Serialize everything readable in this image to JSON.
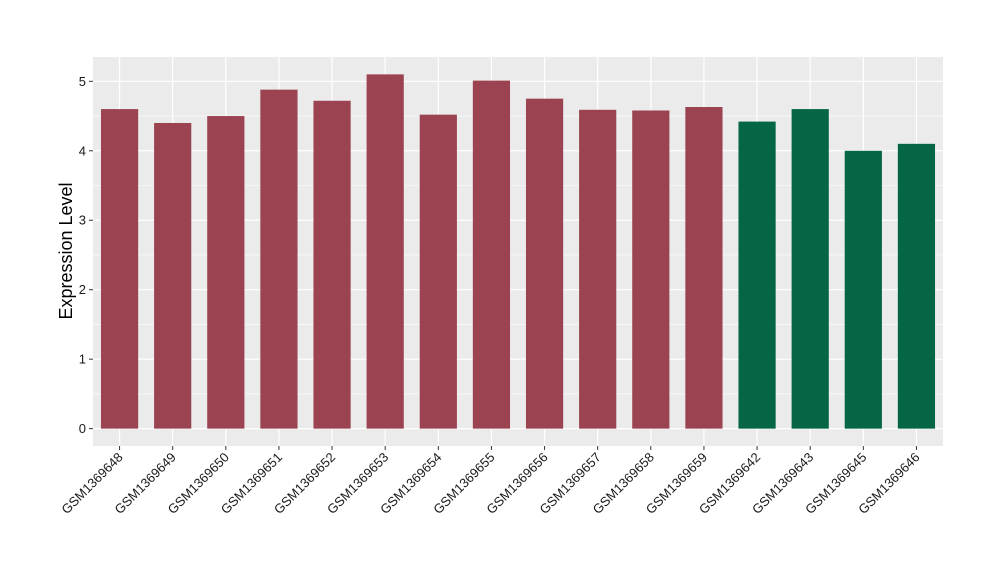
{
  "chart_data": {
    "type": "bar",
    "title": "",
    "xlabel": "",
    "ylabel": "Expression Level",
    "ylim": [
      -0.25,
      5.35
    ],
    "yticks": [
      0,
      1,
      2,
      3,
      4,
      5
    ],
    "grid": true,
    "legend": "none",
    "categories": [
      "GSM1369648",
      "GSM1369649",
      "GSM1369650",
      "GSM1369651",
      "GSM1369652",
      "GSM1369653",
      "GSM1369654",
      "GSM1369655",
      "GSM1369656",
      "GSM1369657",
      "GSM1369658",
      "GSM1369659",
      "GSM1369642",
      "GSM1369643",
      "GSM1369645",
      "GSM1369646"
    ],
    "values": [
      4.6,
      4.4,
      4.5,
      4.88,
      4.72,
      5.1,
      4.52,
      5.01,
      4.75,
      4.59,
      4.58,
      4.63,
      4.42,
      4.6,
      4.0,
      4.1
    ],
    "bar_colors": [
      "#9B4350",
      "#9B4350",
      "#9B4350",
      "#9B4350",
      "#9B4350",
      "#9B4350",
      "#9B4350",
      "#9B4350",
      "#9B4350",
      "#9B4350",
      "#9B4350",
      "#9B4350",
      "#046645",
      "#046645",
      "#046645",
      "#046645"
    ],
    "panel_background": "#EBEBEB",
    "gridline_color": "#FFFFFF"
  }
}
